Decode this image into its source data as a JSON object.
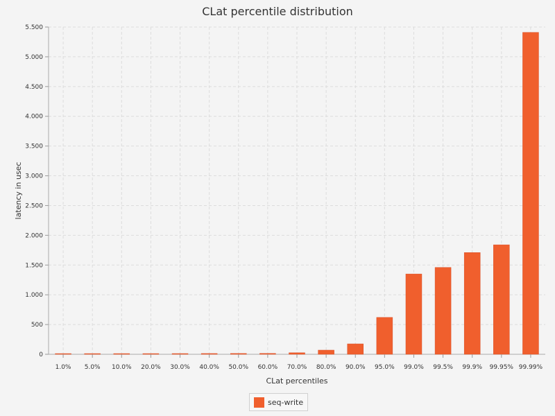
{
  "chart_data": {
    "type": "bar",
    "title": "CLat percentile distribution",
    "xlabel": "CLat percentiles",
    "ylabel": "latency in usec",
    "categories": [
      "1.0%",
      "5.0%",
      "10.0%",
      "20.0%",
      "30.0%",
      "40.0%",
      "50.0%",
      "60.0%",
      "70.0%",
      "80.0%",
      "90.0%",
      "95.0%",
      "99.0%",
      "99.5%",
      "99.9%",
      "99.95%",
      "99.99%"
    ],
    "series": [
      {
        "name": "seq-write",
        "values": [
          8,
          9,
          10,
          11,
          12,
          13,
          14,
          15,
          26,
          70,
          175,
          620,
          1350,
          1460,
          1710,
          1840,
          5410
        ]
      }
    ],
    "ylim": [
      0,
      5500
    ],
    "yticks": [
      0,
      500,
      1000,
      1500,
      2000,
      2500,
      3000,
      3500,
      4000,
      4500,
      5000,
      5500
    ],
    "ytick_labels": [
      "0",
      "500",
      "1.000",
      "1.500",
      "2.000",
      "2.500",
      "3.000",
      "3.500",
      "4.000",
      "4.500",
      "5.000",
      "5.500"
    ],
    "grid": true,
    "legend_position": "bottom-center",
    "bar_color": "#f05f2d"
  }
}
